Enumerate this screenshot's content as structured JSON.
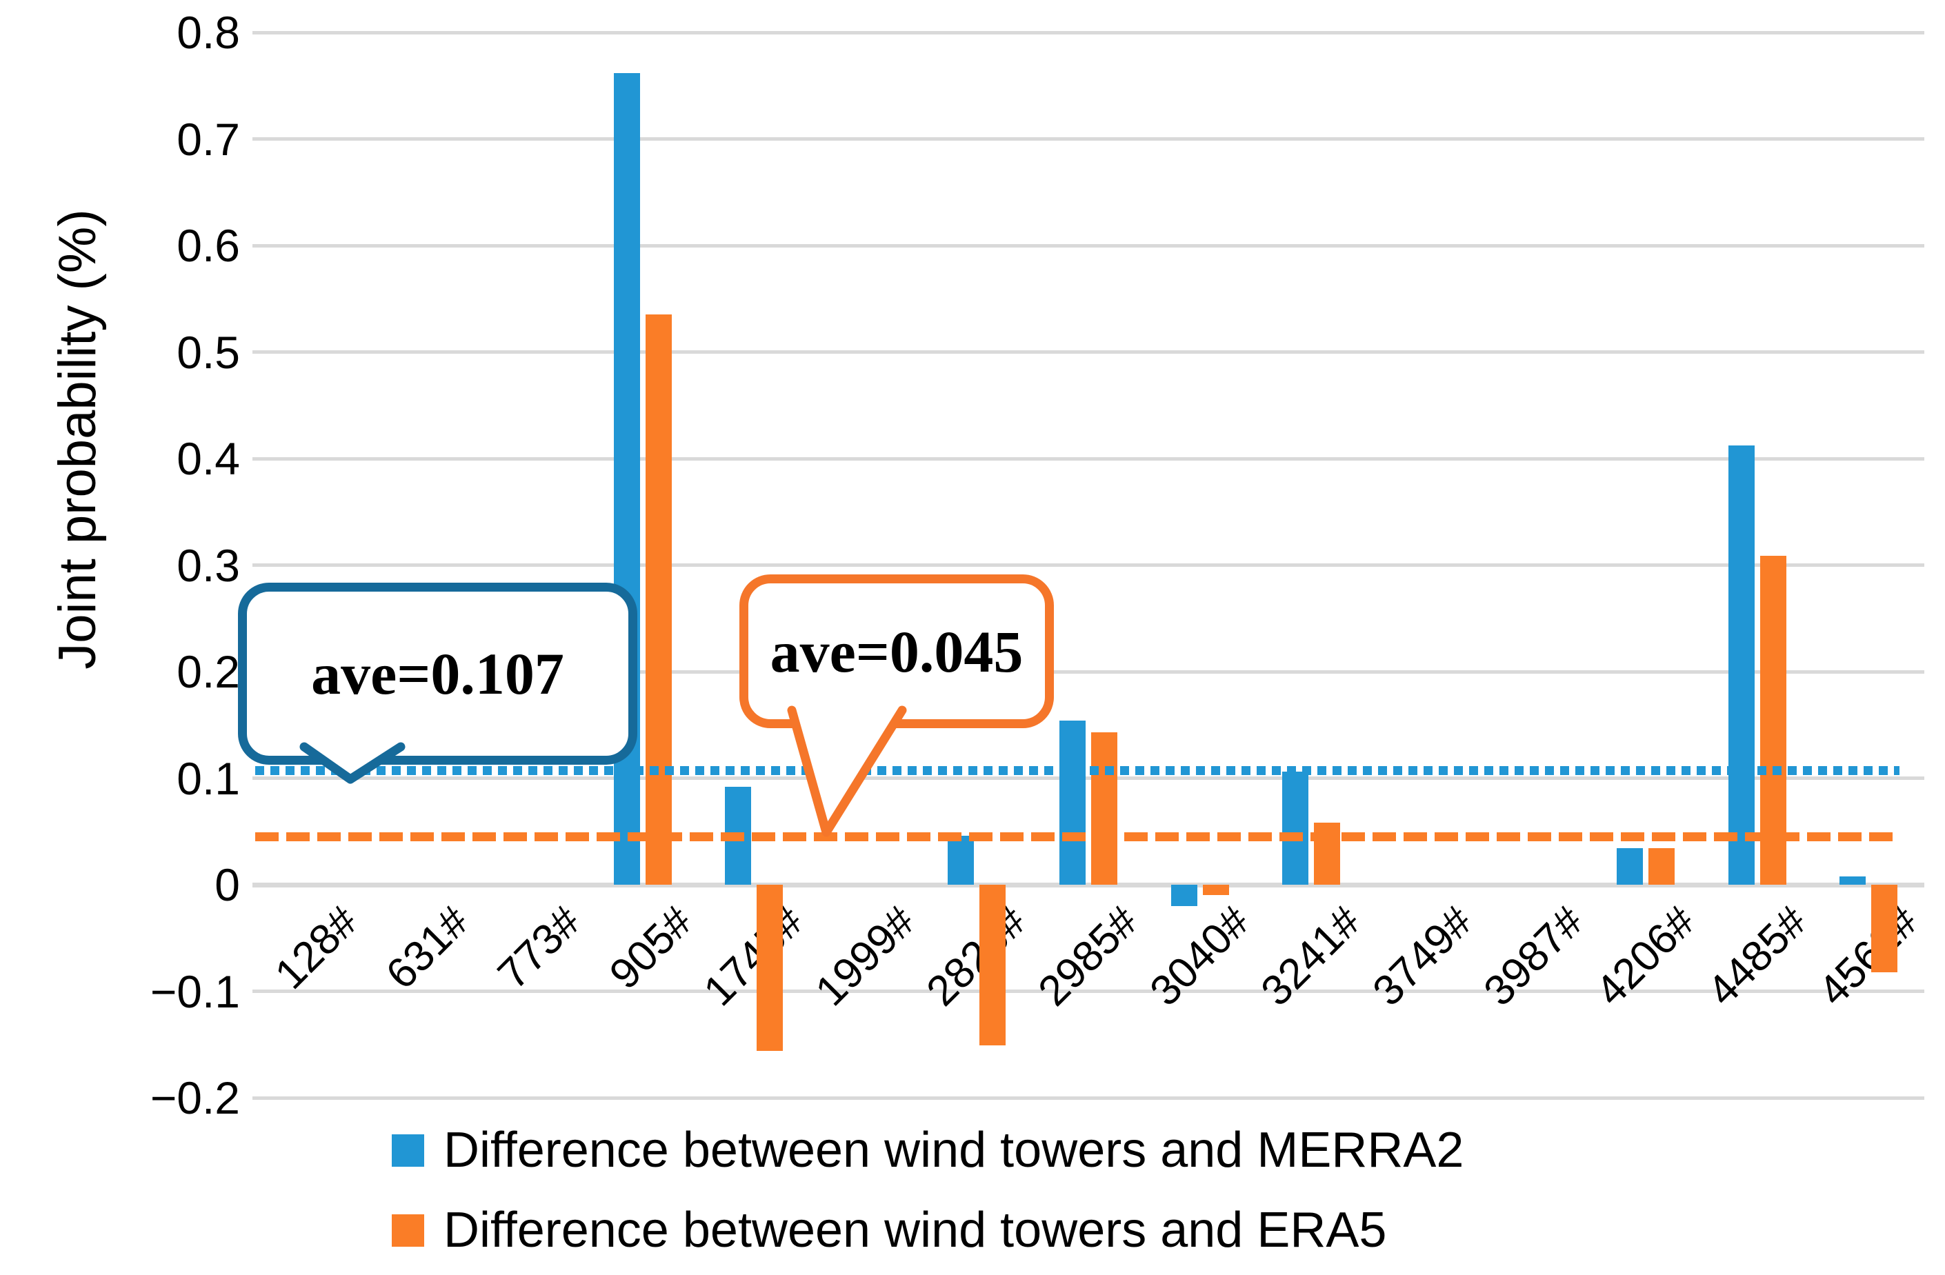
{
  "y_axis": {
    "title": "Joint probability (%)",
    "min": -0.2,
    "max": 0.8,
    "step": 0.1,
    "tick_labels": [
      "0.8",
      "0.7",
      "0.6",
      "0.5",
      "0.4",
      "0.3",
      "0.2",
      "0.1",
      "0",
      "−0.1",
      "−0.2"
    ]
  },
  "chart_data": {
    "type": "bar",
    "title": "",
    "xlabel": "",
    "ylabel": "Joint probability (%)",
    "ylim": [
      -0.2,
      0.8
    ],
    "grid": "horizontal",
    "legend_position": "bottom",
    "categories": [
      "128#",
      "631#",
      "773#",
      "905#",
      "1745#",
      "1999#",
      "2826#",
      "2985#",
      "3040#",
      "3241#",
      "3749#",
      "3987#",
      "4206#",
      "4485#",
      "4562#"
    ],
    "series": [
      {
        "name": "Difference between wind towers and MERRA2",
        "color": "#2196d4",
        "values": [
          0,
          0,
          0,
          0.762,
          0.092,
          0,
          0.046,
          0.154,
          -0.02,
          0.106,
          0,
          0,
          0.034,
          0.412,
          0.008
        ]
      },
      {
        "name": "Difference between wind towers and ERA5",
        "color": "#fa7d27",
        "values": [
          0,
          0,
          0,
          0.535,
          -0.156,
          0,
          -0.151,
          0.143,
          -0.01,
          0.058,
          0,
          0,
          0.034,
          0.309,
          -0.082
        ]
      }
    ]
  },
  "annotations": {
    "merra2_mean": {
      "label": "ave=0.107",
      "value": 0.107,
      "line_style": "dotted",
      "line_color": "#2196d4",
      "box_border_color": "#166a9a"
    },
    "era5_mean": {
      "label": "ave=0.045",
      "value": 0.045,
      "line_style": "dashed",
      "line_color": "#fa7d27",
      "box_border_color": "#f5762a"
    }
  },
  "colors": {
    "gridline": "#d9d9d9",
    "background": "#ffffff"
  }
}
